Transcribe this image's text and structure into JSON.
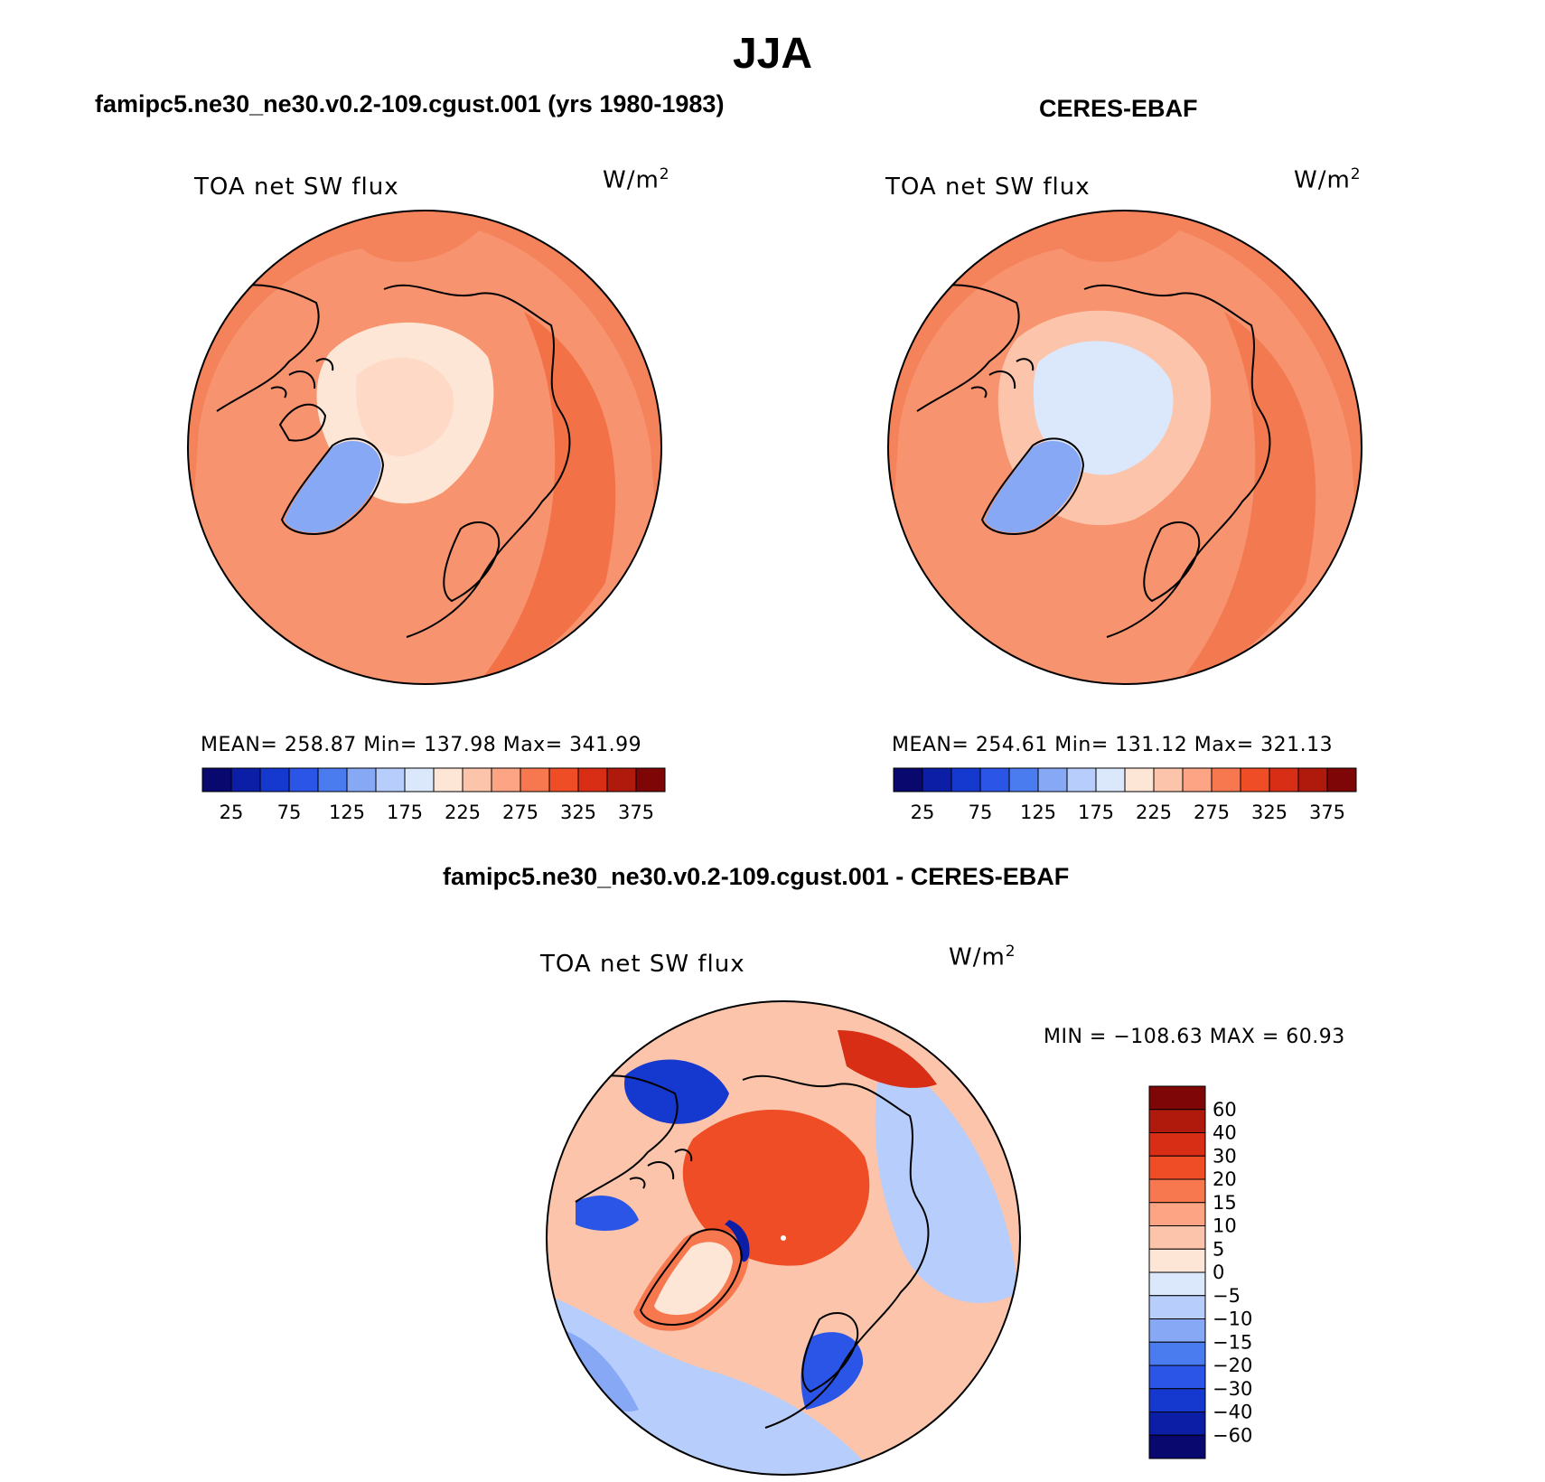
{
  "title": "JJA",
  "panels": [
    {
      "id": "model",
      "title": "famipc5.ne30_ne30.v0.2-109.cgust.001 (yrs 1980-1983)",
      "variable": "TOA net SW flux",
      "units_base": "W/m",
      "units_exp": "2",
      "stats": "MEAN= 258.87    Min= 137.98    Max= 341.99",
      "map_fill": "#f4825a"
    },
    {
      "id": "obs",
      "title": "CERES-EBAF",
      "variable": "TOA net SW flux",
      "units_base": "W/m",
      "units_exp": "2",
      "stats": "MEAN= 254.61    Min= 131.12    Max= 321.13",
      "map_fill": "#f4825a"
    },
    {
      "id": "diff",
      "title": "famipc5.ne30_ne30.v0.2-109.cgust.001 - CERES-EBAF",
      "variable": "TOA net SW flux",
      "units_base": "W/m",
      "units_exp": "2",
      "stats": "MIN = −108.63 MAX =   60.93"
    }
  ],
  "abs_colorbar": {
    "colors": [
      "#08086e",
      "#0b1ea5",
      "#1539cf",
      "#2a55e6",
      "#4a7cf0",
      "#86a8f5",
      "#b7cdfb",
      "#dbe8fc",
      "#fde6d6",
      "#fcc5ab",
      "#fca483",
      "#f7784f",
      "#ee4d26",
      "#d72e15",
      "#b01a0c",
      "#7e0606"
    ],
    "tick_labels": [
      "25",
      "75",
      "125",
      "175",
      "225",
      "275",
      "325",
      "375"
    ]
  },
  "diff_colorbar": {
    "colors": [
      "#7e0606",
      "#b01a0c",
      "#d72e15",
      "#ee4d26",
      "#f7784f",
      "#fca483",
      "#fcc5ab",
      "#fde6d6",
      "#dbe8fc",
      "#b7cdfb",
      "#86a8f5",
      "#4a7cf0",
      "#2a55e6",
      "#1539cf",
      "#0b1ea5",
      "#08086e"
    ],
    "tick_labels": [
      "60",
      "40",
      "30",
      "20",
      "15",
      "10",
      "5",
      "0",
      "−5",
      "−10",
      "−15",
      "−20",
      "−30",
      "−40",
      "−60"
    ]
  }
}
